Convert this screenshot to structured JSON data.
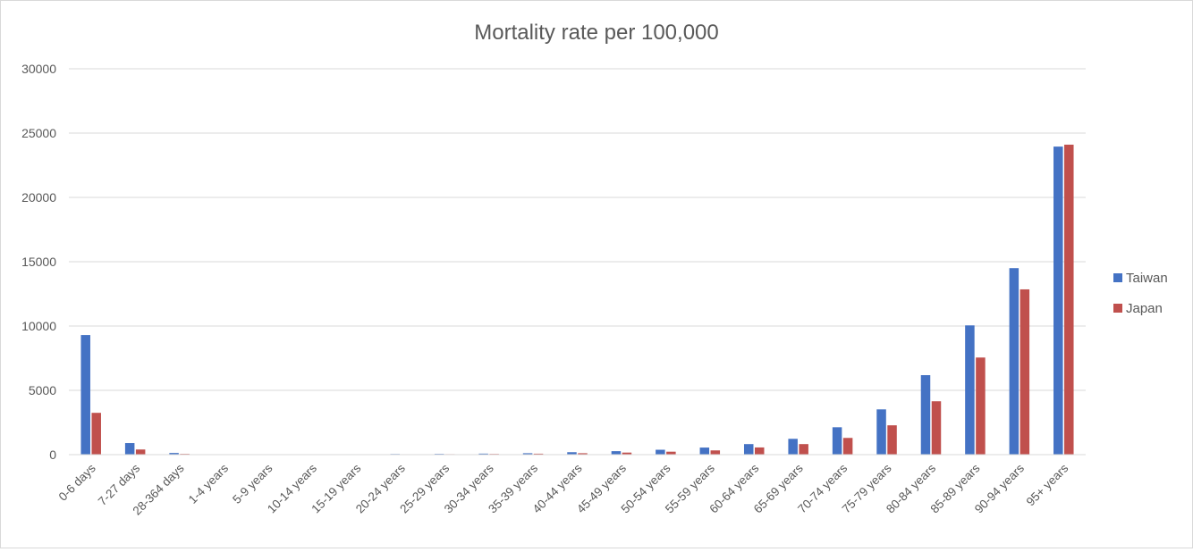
{
  "chart_data": {
    "type": "bar",
    "title": "Mortality rate per 100,000",
    "categories": [
      "0-6 days",
      "7-27 days",
      "28-364 days",
      "1-4 years",
      "5-9 years",
      "10-14 years",
      "15-19 years",
      "20-24 years",
      "25-29 years",
      "30-34 years",
      "35-39 years",
      "40-44 years",
      "45-49 years",
      "50-54 years",
      "55-59 years",
      "60-64 years",
      "65-69 years",
      "70-74 years",
      "75-79 years",
      "80-84 years",
      "85-89 years",
      "90-94 years",
      "95+ years"
    ],
    "series": [
      {
        "name": "Taiwan",
        "color": "#4472c4",
        "values": [
          9300,
          900,
          130,
          25,
          12,
          15,
          35,
          50,
          60,
          80,
          110,
          190,
          270,
          380,
          550,
          820,
          1230,
          2130,
          3520,
          6180,
          10050,
          14500,
          23950
        ]
      },
      {
        "name": "Japan",
        "color": "#c0504d",
        "values": [
          3250,
          400,
          60,
          15,
          8,
          9,
          22,
          35,
          40,
          55,
          75,
          110,
          160,
          230,
          330,
          560,
          820,
          1300,
          2280,
          4150,
          7550,
          12850,
          24100
        ]
      }
    ],
    "ylim": [
      0,
      30000
    ],
    "yticks": [
      0,
      5000,
      10000,
      15000,
      20000,
      25000,
      30000
    ],
    "xlabel": "",
    "ylabel": "",
    "grid": true,
    "legend_position": "right"
  }
}
